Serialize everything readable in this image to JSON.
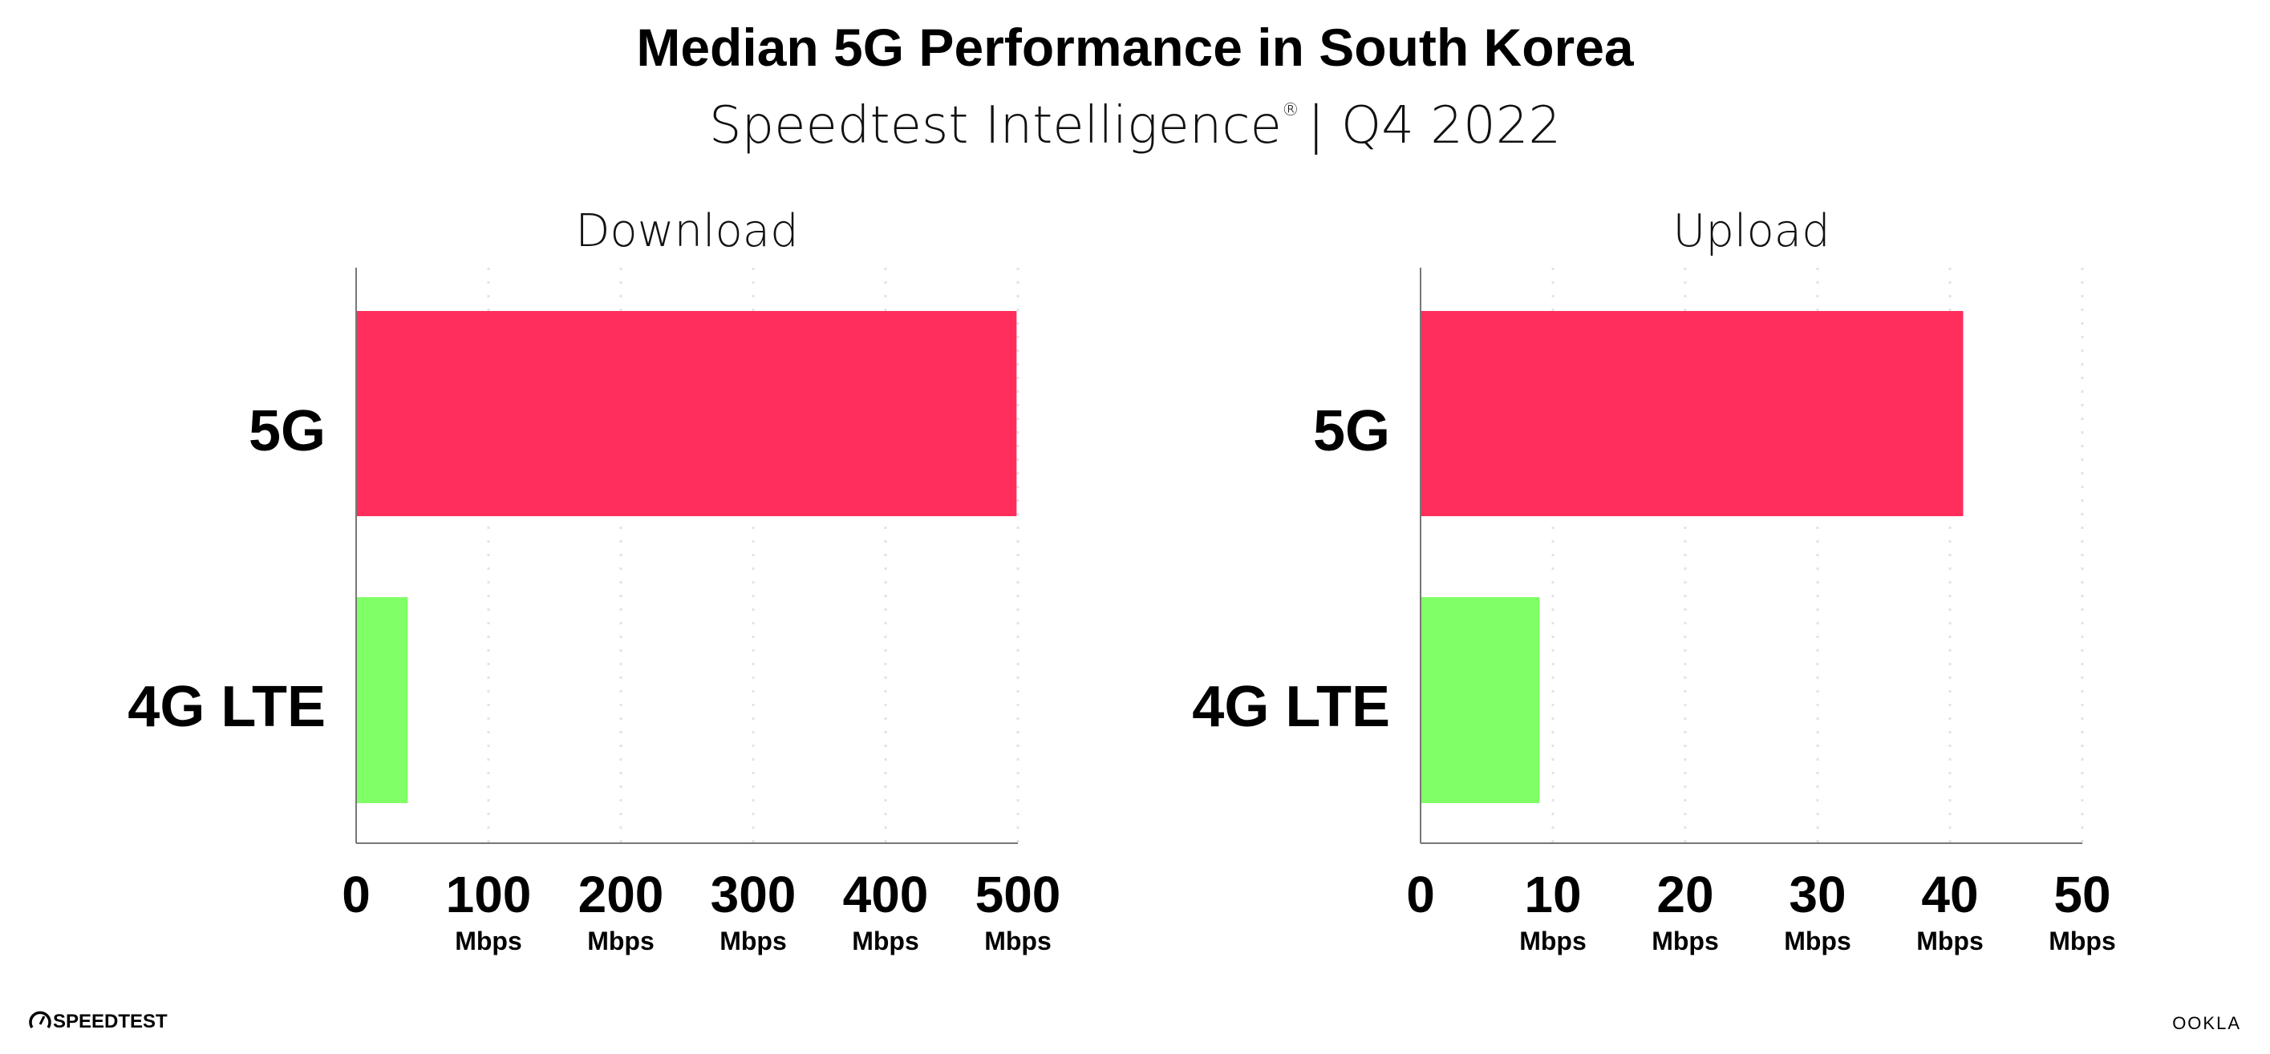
{
  "header": {
    "title": "Median 5G Performance in South Korea",
    "subtitle": "Speedtest Intelligence",
    "subtitle_mark": "®",
    "subtitle_period": "| Q4 2022"
  },
  "colors": {
    "5G": "#ff2e5c",
    "4G LTE": "#80ff66",
    "grid": "#dfe3ee",
    "axis": "#777777"
  },
  "chart_data": [
    {
      "type": "bar",
      "orientation": "horizontal",
      "title": "Download",
      "categories": [
        "5G",
        "4G LTE"
      ],
      "values": [
        499,
        39
      ],
      "xlim": [
        0,
        500
      ],
      "ticks": [
        "0",
        "100",
        "200",
        "300",
        "400",
        "500"
      ],
      "tick_unit": "Mbps",
      "grid": true
    },
    {
      "type": "bar",
      "orientation": "horizontal",
      "title": "Upload",
      "categories": [
        "5G",
        "4G LTE"
      ],
      "values": [
        41,
        9
      ],
      "xlim": [
        0,
        50
      ],
      "ticks": [
        "0",
        "10",
        "20",
        "30",
        "40",
        "50"
      ],
      "tick_unit": "Mbps",
      "grid": true
    }
  ],
  "footer": {
    "left_logo": "SPEEDTEST",
    "right_logo": "OOKLA",
    "left_icon": "speedometer-icon"
  }
}
